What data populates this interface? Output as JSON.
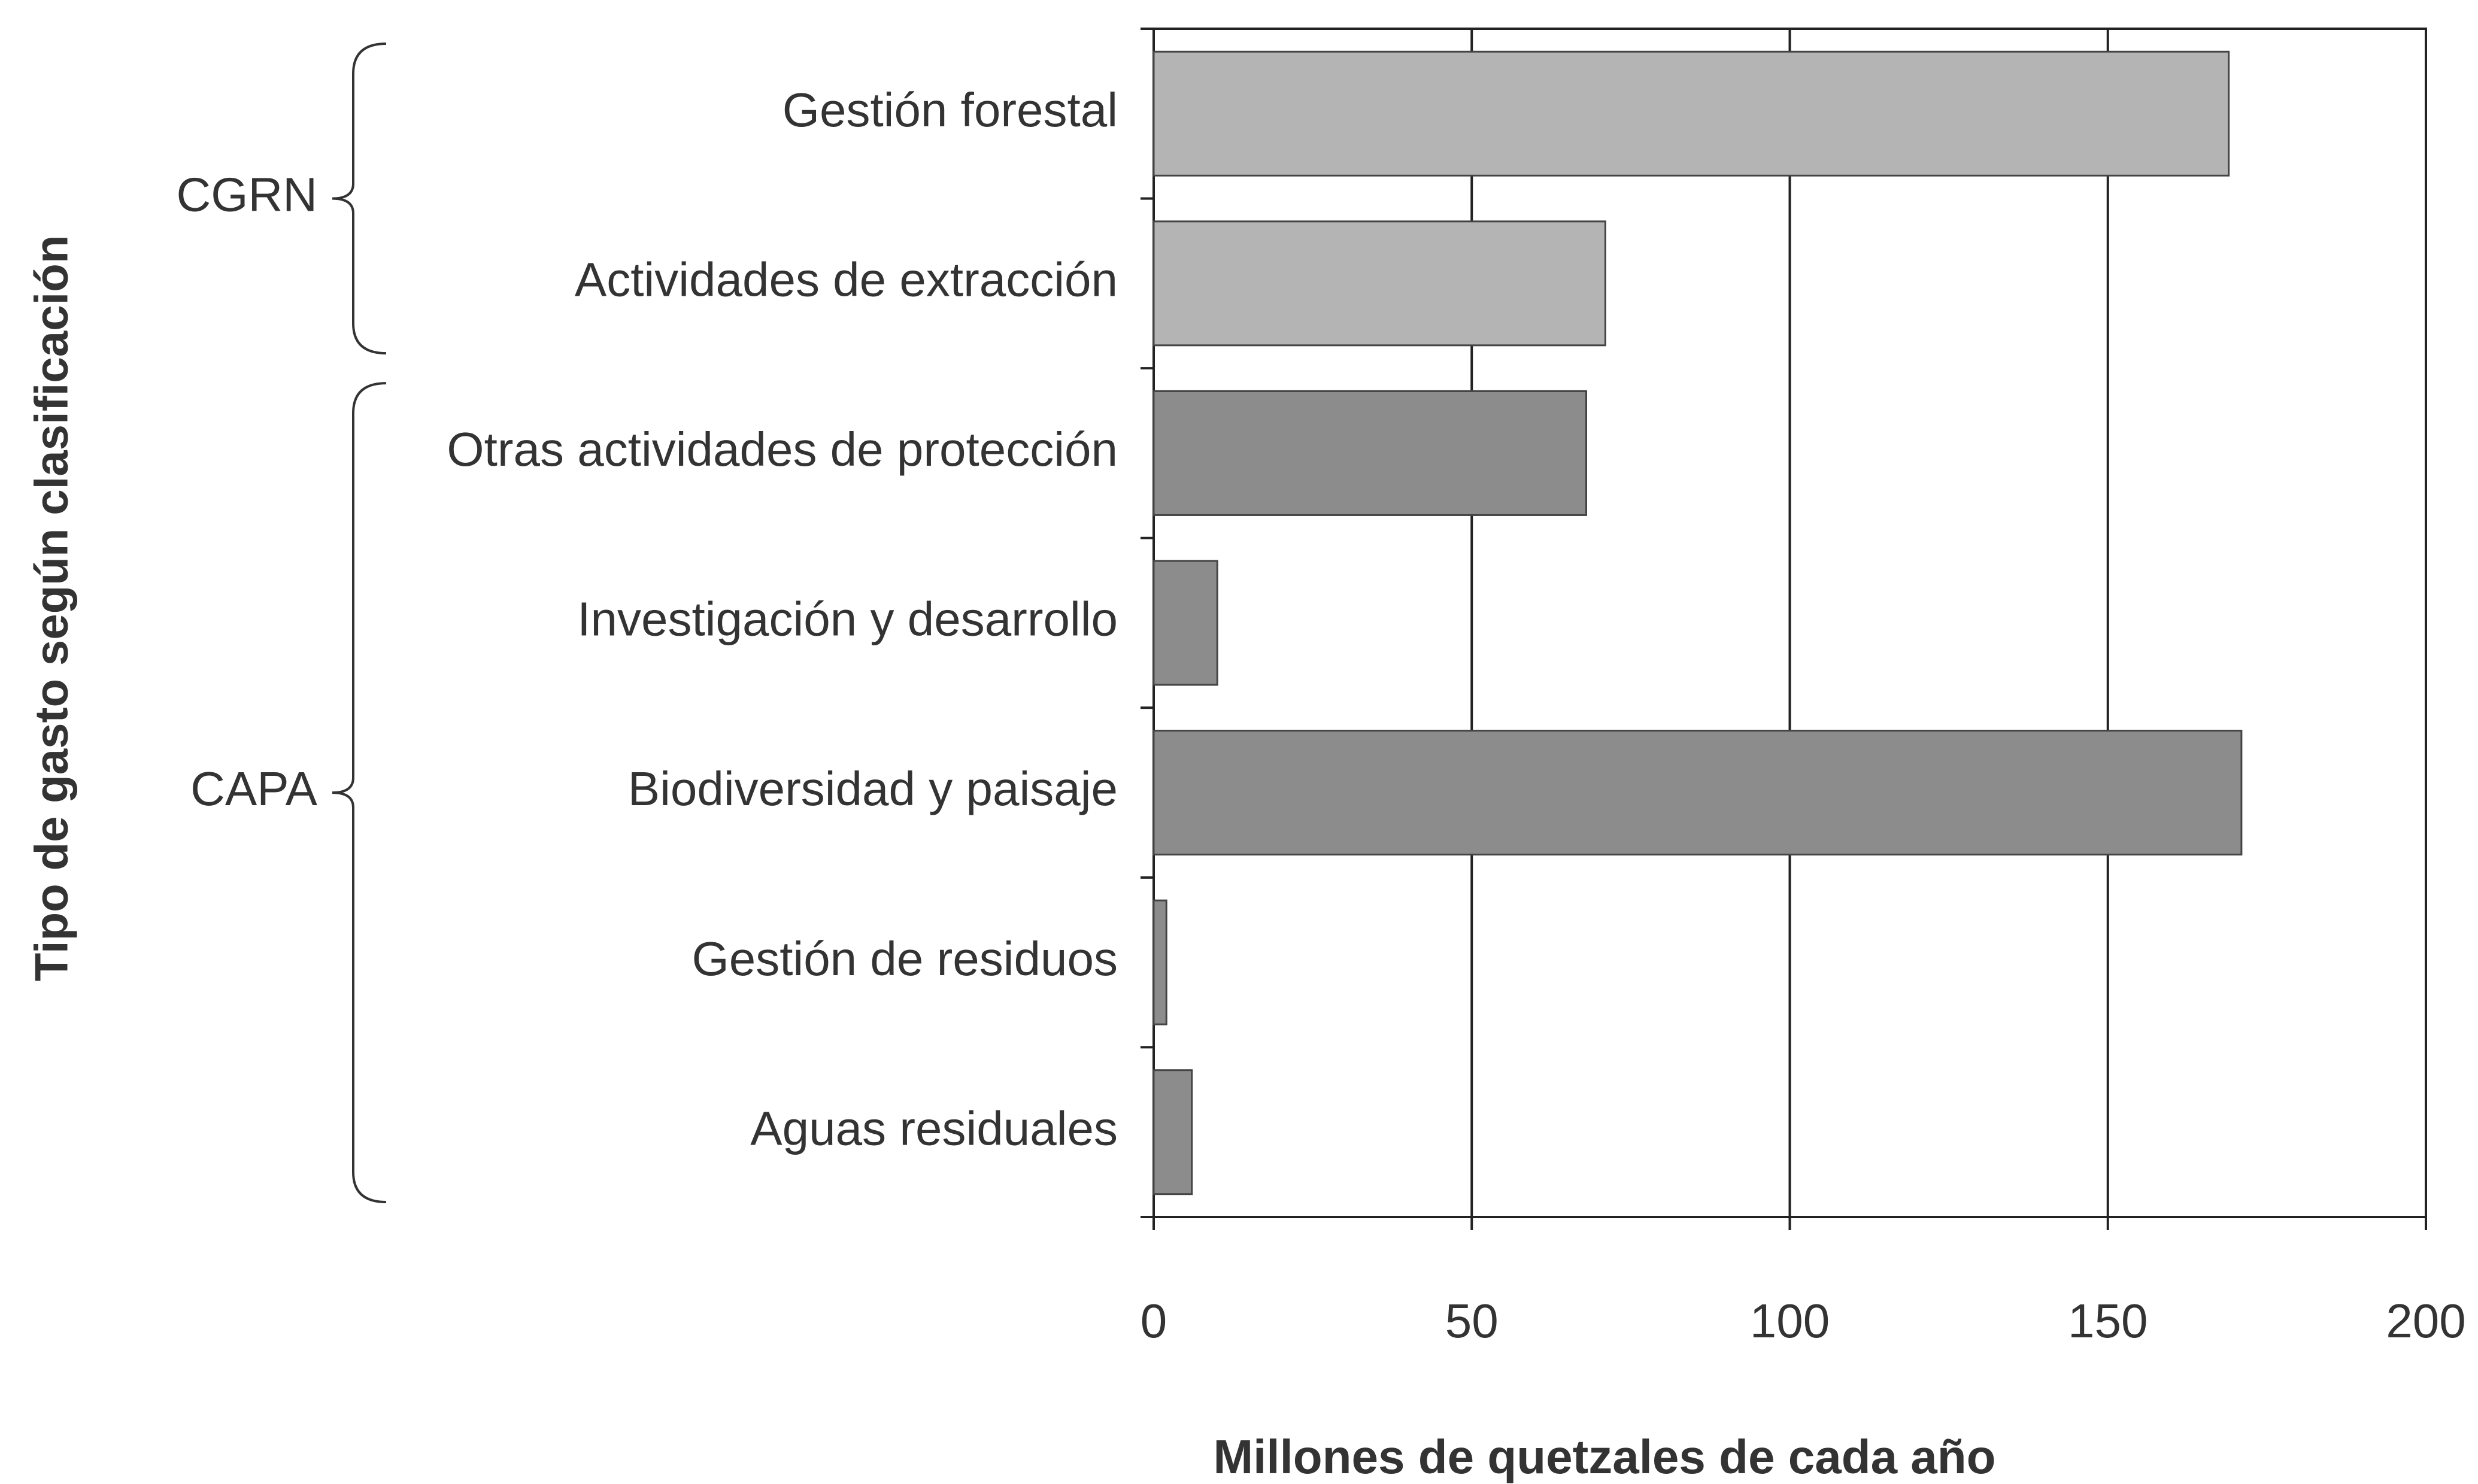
{
  "chart_data": {
    "type": "barh",
    "y_label": "Tipo de gasto según clasificación",
    "x_label": "Millones de quetzales de cada año",
    "categories": [
      "Gestión forestal",
      "Actividades de extracción",
      "Otras actividades de protección",
      "Investigación y desarrollo",
      "Biodiversidad y paisaje",
      "Gestión de residuos",
      "Aguas residuales"
    ],
    "values": [
      169,
      71,
      68,
      10,
      171,
      2,
      6
    ],
    "groups": [
      {
        "name": "CGRN",
        "count": 2,
        "color": "#b4b4b4"
      },
      {
        "name": "CAPA",
        "count": 5,
        "color": "#8c8c8c"
      }
    ],
    "xlim": [
      0,
      200
    ],
    "xticks": [
      0,
      50,
      100,
      150,
      200
    ],
    "grid": true
  }
}
